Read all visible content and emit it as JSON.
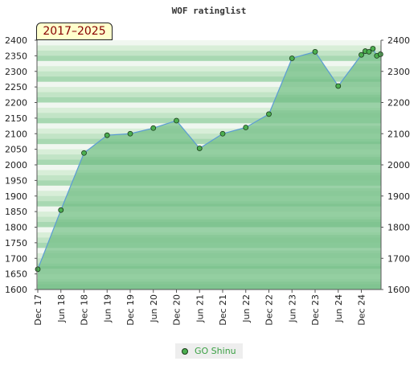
{
  "chart_data": {
    "type": "line",
    "title": "WOF ratinglist",
    "period_label": "2017–2025",
    "x_tick_labels": [
      "Dec 17",
      "Jun 18",
      "Dec 18",
      "Jun 19",
      "Dec 19",
      "Jun 20",
      "Dec 20",
      "Jun 21",
      "Dec 21",
      "Jun 22",
      "Dec 22",
      "Jun 23",
      "Dec 23",
      "Jun 24",
      "Dec 24"
    ],
    "y_left": {
      "min": 1600,
      "max": 2400,
      "step": 50
    },
    "y_right": {
      "min": 1600,
      "max": 2400,
      "step": 100
    },
    "series": [
      {
        "name": "GO Shinu",
        "color": "#5b9bd5",
        "marker_color": "#4caf50",
        "points": [
          {
            "x": 0,
            "y": 1665
          },
          {
            "x": 1,
            "y": 1855
          },
          {
            "x": 2,
            "y": 2038
          },
          {
            "x": 3,
            "y": 2095
          },
          {
            "x": 4,
            "y": 2100
          },
          {
            "x": 5,
            "y": 2118
          },
          {
            "x": 6,
            "y": 2142
          },
          {
            "x": 7,
            "y": 2053
          },
          {
            "x": 8,
            "y": 2100
          },
          {
            "x": 9,
            "y": 2120
          },
          {
            "x": 10,
            "y": 2163
          },
          {
            "x": 11,
            "y": 2342
          },
          {
            "x": 12,
            "y": 2363
          },
          {
            "x": 13,
            "y": 2253
          },
          {
            "x": 14,
            "y": 2353
          },
          {
            "x": 14.17,
            "y": 2365
          },
          {
            "x": 14.33,
            "y": 2363
          },
          {
            "x": 14.5,
            "y": 2373
          },
          {
            "x": 14.67,
            "y": 2350
          },
          {
            "x": 14.83,
            "y": 2355
          }
        ]
      }
    ],
    "legend": {
      "entries": [
        "GO Shinu"
      ],
      "position": "bottom"
    },
    "area_fill_color": "#7dc48f",
    "band_colors": [
      "#f0f7f0",
      "#d8eed8",
      "#c2e4c6",
      "#a8d8b2"
    ]
  }
}
